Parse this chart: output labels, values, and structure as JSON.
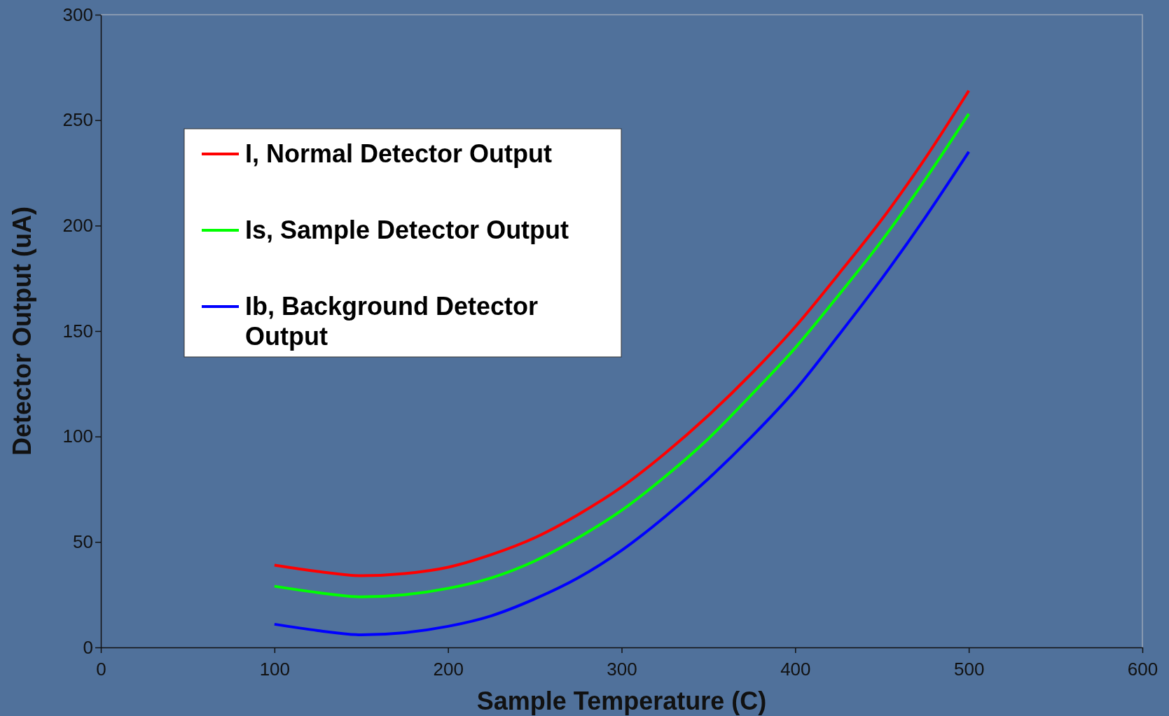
{
  "chart_data": {
    "type": "line",
    "xlabel": "Sample Temperature (C)",
    "ylabel": "Detector Output (uA)",
    "x": [
      100,
      125,
      150,
      175,
      200,
      225,
      250,
      275,
      300,
      325,
      350,
      375,
      400,
      425,
      450,
      475,
      500
    ],
    "series": [
      {
        "name": "I, Normal Detector Output",
        "color": "#ff0000",
        "values": [
          39,
          36,
          34,
          35,
          38,
          44,
          52,
          63,
          76,
          92,
          110,
          130,
          152,
          177,
          203,
          232,
          264
        ]
      },
      {
        "name": "Is, Sample Detector Output",
        "color": "#00ff00",
        "values": [
          29,
          26,
          24,
          25,
          28,
          33,
          41,
          52,
          65,
          81,
          99,
          120,
          142,
          167,
          193,
          222,
          253
        ]
      },
      {
        "name": "Ib, Background Detector Output",
        "color": "#0000ff",
        "values": [
          11,
          8,
          6,
          7,
          10,
          15,
          23,
          33,
          46,
          62,
          80,
          100,
          122,
          148,
          175,
          204,
          235
        ]
      }
    ],
    "xlim": [
      0,
      600
    ],
    "xticks": [
      0,
      100,
      200,
      300,
      400,
      500,
      600
    ],
    "ylim": [
      0,
      300
    ],
    "yticks": [
      0,
      50,
      100,
      150,
      200,
      250,
      300
    ],
    "legend": "top left",
    "grid": false,
    "marker": "none",
    "line_style": "solid"
  }
}
